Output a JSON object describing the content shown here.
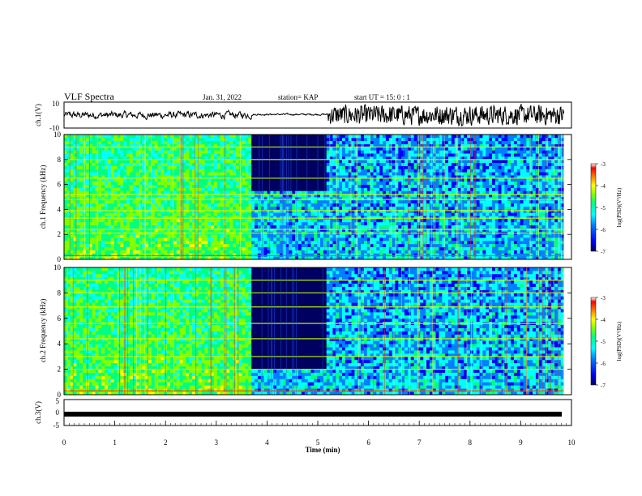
{
  "header": {
    "title": "VLF Spectra",
    "date": "Jan. 31, 2022",
    "station": "station= KAP",
    "start": "start  UT =   15: 0  : 1"
  },
  "colorbar": {
    "label": "log(PSD)(V²/Hz)",
    "ticks": [
      "-3",
      "-4",
      "-5",
      "-6",
      "-7"
    ],
    "range": [
      -7,
      -3
    ],
    "colors": [
      "#000060",
      "#0000ff",
      "#0080ff",
      "#00ffff",
      "#00ff80",
      "#80ff00",
      "#ffff00",
      "#ff8000",
      "#ff0000",
      "#ffffff"
    ]
  },
  "chart_data": [
    {
      "type": "line",
      "panel": "ch.1 waveform",
      "ylabel": "ch.1(V)",
      "ylim": [
        -10,
        10
      ],
      "yticks": [
        "10",
        "-10"
      ],
      "xlim": [
        0,
        10
      ],
      "segments": [
        {
          "x": [
            0,
            3.7
          ],
          "description_level": "moderate",
          "amplitude": [
            -6,
            6
          ]
        },
        {
          "x": [
            3.7,
            5.2
          ],
          "amplitude": [
            -1,
            2
          ]
        },
        {
          "x": [
            5.2,
            9.85
          ],
          "amplitude": [
            -10,
            10
          ]
        }
      ]
    },
    {
      "type": "heatmap",
      "panel": "ch.1 spectrogram",
      "ylabel": "ch.1 Frequency (kHz)",
      "xlim": [
        0,
        10
      ],
      "ylim": [
        0,
        10
      ],
      "yticks": [
        "0",
        "2",
        "4",
        "6",
        "8",
        "10"
      ],
      "data_x_end": 9.85,
      "quiet_interval_min": [
        3.7,
        5.2
      ],
      "quiet_cutoff_khz": 5.4,
      "horizontal_lines_khz": [
        0.3,
        2.1,
        2.4,
        3.3,
        3.9,
        4.8,
        5.2,
        6.5,
        8.0,
        9.0
      ]
    },
    {
      "type": "heatmap",
      "panel": "ch.2 spectrogram",
      "ylabel": "ch.2 Frequency (kHz)",
      "xlim": [
        0,
        10
      ],
      "ylim": [
        0,
        10
      ],
      "yticks": [
        "0",
        "2",
        "4",
        "6",
        "8",
        "10"
      ],
      "data_x_end": 9.85,
      "quiet_interval_min": [
        3.7,
        5.2
      ],
      "quiet_cutoff_khz": 2.1,
      "horizontal_lines_khz": [
        0.3,
        2.0,
        3.0,
        4.4,
        5.6,
        6.9,
        8.0,
        9.0
      ]
    },
    {
      "type": "line",
      "panel": "ch.3 waveform",
      "ylabel": "ch.3(V)",
      "ylim": [
        -5,
        5
      ],
      "yticks": [
        "5",
        "0",
        "-5"
      ],
      "xlim": [
        0,
        10
      ],
      "xlabel": "Time  (min)",
      "xticks": [
        "0",
        "1",
        "2",
        "3",
        "4",
        "5",
        "6",
        "7",
        "8",
        "9",
        "10"
      ],
      "x": [
        0,
        9.85
      ],
      "y": [
        -0.3,
        -0.3
      ]
    }
  ]
}
